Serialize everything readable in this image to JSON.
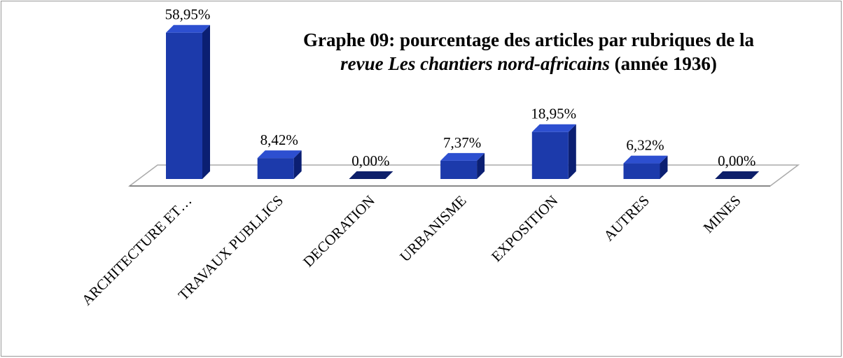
{
  "chart_data": {
    "type": "bar3d",
    "title": [
      "Graphe 09: pourcentage des articles par rubriques de la",
      "revue Les chantiers nord-africains",
      "(année 1936)"
    ],
    "categories": [
      "ARCHITECTURE ET…",
      "TRAVAUX PUBLLICS",
      "DECORATION",
      "URBANISME",
      "EXPOSITION",
      "AUTRES",
      "MINES"
    ],
    "values": [
      58.95,
      8.42,
      0,
      7.37,
      18.95,
      6.32,
      0
    ],
    "value_labels": [
      "58,95%",
      "8,42%",
      "0,00%",
      "7,37%",
      "18,95%",
      "6,32%",
      "0,00%"
    ],
    "color": "#1c3aab"
  }
}
